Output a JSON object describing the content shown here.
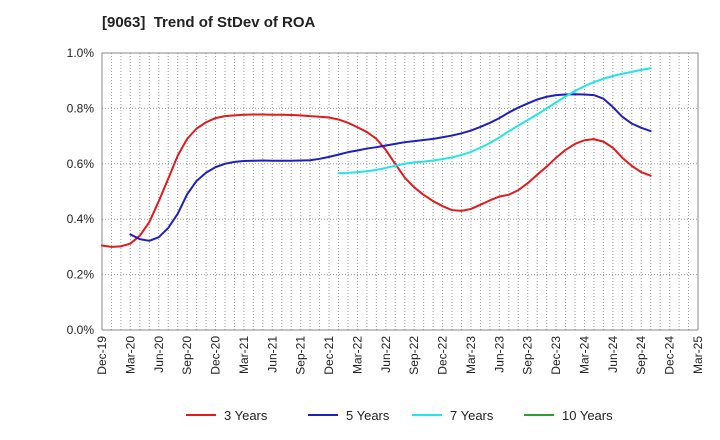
{
  "chart_data": {
    "type": "line",
    "title": "[9063]  Trend of StDev of ROA",
    "xlabel": "",
    "ylabel": "",
    "ylim": [
      0,
      1.0
    ],
    "yticks": [
      "0.0%",
      "0.2%",
      "0.4%",
      "0.6%",
      "0.8%",
      "1.0%"
    ],
    "categories": [
      "Dec-19",
      "Mar-20",
      "Jun-20",
      "Sep-20",
      "Dec-20",
      "Mar-21",
      "Jun-21",
      "Sep-21",
      "Dec-21",
      "Mar-22",
      "Jun-22",
      "Sep-22",
      "Dec-22",
      "Mar-23",
      "Jun-23",
      "Sep-23",
      "Dec-23",
      "Mar-24",
      "Jun-24",
      "Sep-24",
      "Dec-24",
      "Mar-25"
    ],
    "grid": true,
    "legend_position": "bottom",
    "series": [
      {
        "name": "3 Years",
        "color": "#e31a1c",
        "points": [
          [
            0,
            0.305
          ],
          [
            0.33,
            0.3
          ],
          [
            0.67,
            0.302
          ],
          [
            1,
            0.312
          ],
          [
            1.33,
            0.34
          ],
          [
            1.67,
            0.39
          ],
          [
            2,
            0.465
          ],
          [
            2.33,
            0.545
          ],
          [
            2.67,
            0.63
          ],
          [
            3,
            0.69
          ],
          [
            3.33,
            0.727
          ],
          [
            3.67,
            0.75
          ],
          [
            4,
            0.765
          ],
          [
            4.33,
            0.772
          ],
          [
            4.67,
            0.775
          ],
          [
            5,
            0.777
          ],
          [
            5.33,
            0.778
          ],
          [
            5.67,
            0.778
          ],
          [
            6,
            0.777
          ],
          [
            6.33,
            0.777
          ],
          [
            6.67,
            0.776
          ],
          [
            7,
            0.775
          ],
          [
            7.33,
            0.772
          ],
          [
            7.67,
            0.77
          ],
          [
            8,
            0.767
          ],
          [
            8.33,
            0.76
          ],
          [
            8.67,
            0.748
          ],
          [
            9,
            0.732
          ],
          [
            9.33,
            0.715
          ],
          [
            9.67,
            0.69
          ],
          [
            10,
            0.65
          ],
          [
            10.33,
            0.6
          ],
          [
            10.67,
            0.55
          ],
          [
            11,
            0.515
          ],
          [
            11.33,
            0.488
          ],
          [
            11.67,
            0.465
          ],
          [
            12,
            0.447
          ],
          [
            12.33,
            0.433
          ],
          [
            12.67,
            0.43
          ],
          [
            13,
            0.437
          ],
          [
            13.33,
            0.452
          ],
          [
            13.67,
            0.468
          ],
          [
            14,
            0.482
          ],
          [
            14.33,
            0.488
          ],
          [
            14.67,
            0.505
          ],
          [
            15,
            0.53
          ],
          [
            15.33,
            0.56
          ],
          [
            15.67,
            0.59
          ],
          [
            16,
            0.622
          ],
          [
            16.33,
            0.65
          ],
          [
            16.67,
            0.672
          ],
          [
            17,
            0.685
          ],
          [
            17.33,
            0.689
          ],
          [
            17.67,
            0.68
          ],
          [
            18,
            0.658
          ],
          [
            18.33,
            0.622
          ],
          [
            18.67,
            0.592
          ],
          [
            19,
            0.57
          ],
          [
            19.33,
            0.557
          ]
        ]
      },
      {
        "name": "5 Years",
        "color": "#1f1fbf",
        "points": [
          [
            1,
            0.345
          ],
          [
            1.33,
            0.328
          ],
          [
            1.67,
            0.322
          ],
          [
            2,
            0.335
          ],
          [
            2.33,
            0.368
          ],
          [
            2.67,
            0.42
          ],
          [
            3,
            0.49
          ],
          [
            3.33,
            0.538
          ],
          [
            3.67,
            0.568
          ],
          [
            4,
            0.588
          ],
          [
            4.33,
            0.6
          ],
          [
            4.67,
            0.607
          ],
          [
            5,
            0.61
          ],
          [
            5.33,
            0.611
          ],
          [
            5.67,
            0.612
          ],
          [
            6,
            0.611
          ],
          [
            6.33,
            0.611
          ],
          [
            6.67,
            0.611
          ],
          [
            7,
            0.612
          ],
          [
            7.33,
            0.613
          ],
          [
            7.67,
            0.618
          ],
          [
            8,
            0.625
          ],
          [
            8.33,
            0.633
          ],
          [
            8.67,
            0.642
          ],
          [
            9,
            0.648
          ],
          [
            9.33,
            0.655
          ],
          [
            9.67,
            0.66
          ],
          [
            10,
            0.666
          ],
          [
            10.33,
            0.672
          ],
          [
            10.67,
            0.678
          ],
          [
            11,
            0.682
          ],
          [
            11.33,
            0.686
          ],
          [
            11.67,
            0.69
          ],
          [
            12,
            0.696
          ],
          [
            12.33,
            0.702
          ],
          [
            12.67,
            0.71
          ],
          [
            13,
            0.72
          ],
          [
            13.33,
            0.733
          ],
          [
            13.67,
            0.748
          ],
          [
            14,
            0.765
          ],
          [
            14.33,
            0.785
          ],
          [
            14.67,
            0.803
          ],
          [
            15,
            0.818
          ],
          [
            15.33,
            0.832
          ],
          [
            15.67,
            0.842
          ],
          [
            16,
            0.848
          ],
          [
            16.33,
            0.85
          ],
          [
            16.67,
            0.851
          ],
          [
            17,
            0.85
          ],
          [
            17.33,
            0.848
          ],
          [
            17.67,
            0.835
          ],
          [
            18,
            0.805
          ],
          [
            18.33,
            0.77
          ],
          [
            18.67,
            0.745
          ],
          [
            19,
            0.73
          ],
          [
            19.33,
            0.718
          ]
        ]
      },
      {
        "name": "7 Years",
        "color": "#22e5e5",
        "points": [
          [
            8.33,
            0.566
          ],
          [
            8.67,
            0.567
          ],
          [
            9,
            0.57
          ],
          [
            9.33,
            0.573
          ],
          [
            9.67,
            0.578
          ],
          [
            10,
            0.585
          ],
          [
            10.33,
            0.593
          ],
          [
            10.67,
            0.6
          ],
          [
            11,
            0.605
          ],
          [
            11.33,
            0.608
          ],
          [
            11.67,
            0.612
          ],
          [
            12,
            0.617
          ],
          [
            12.33,
            0.623
          ],
          [
            12.67,
            0.632
          ],
          [
            13,
            0.643
          ],
          [
            13.33,
            0.658
          ],
          [
            13.67,
            0.675
          ],
          [
            14,
            0.695
          ],
          [
            14.33,
            0.717
          ],
          [
            14.67,
            0.738
          ],
          [
            15,
            0.758
          ],
          [
            15.33,
            0.778
          ],
          [
            15.67,
            0.8
          ],
          [
            16,
            0.822
          ],
          [
            16.33,
            0.843
          ],
          [
            16.67,
            0.863
          ],
          [
            17,
            0.88
          ],
          [
            17.33,
            0.895
          ],
          [
            17.67,
            0.907
          ],
          [
            18,
            0.917
          ],
          [
            18.33,
            0.925
          ],
          [
            18.67,
            0.932
          ],
          [
            19,
            0.939
          ],
          [
            19.33,
            0.945
          ]
        ]
      },
      {
        "name": "10 Years",
        "color": "#2ca02c",
        "points": []
      }
    ]
  }
}
